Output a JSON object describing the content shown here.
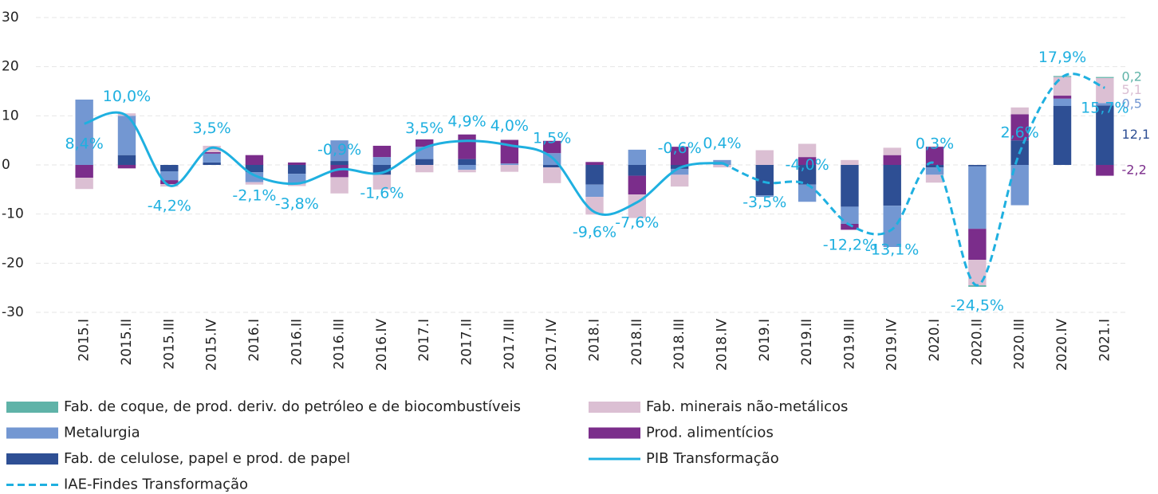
{
  "chart_data": {
    "type": "bar",
    "categories": [
      "2015.I",
      "2015.II",
      "2015.III",
      "2015.IV",
      "2016.I",
      "2016.II",
      "2016.III",
      "2016.IV",
      "2017.I",
      "2017.II",
      "2017.III",
      "2017.IV",
      "2018.I",
      "2018.II",
      "2018.III",
      "2018.IV",
      "2019.I",
      "2019.II",
      "2019.III",
      "2019.IV",
      "2020.I",
      "2020.II",
      "2020.III",
      "2020.IV",
      "2021.I"
    ],
    "ylim": [
      -30,
      30
    ],
    "yticks": [
      -30,
      -20,
      -10,
      0,
      10,
      20,
      30
    ],
    "grid": true,
    "series": [
      {
        "name": "Fab. de coque, de prod. deriv. do petróleo e de biocombustíveis",
        "color": "#5fb3a8",
        "values": [
          0,
          0,
          0,
          0,
          0,
          0,
          0,
          0,
          0,
          0,
          0,
          0,
          0,
          0,
          0,
          0,
          0,
          0,
          0,
          0,
          0,
          -0.3,
          0,
          0.2,
          0.2
        ],
        "value_labels": [
          null,
          null,
          null,
          null,
          null,
          null,
          null,
          null,
          null,
          null,
          null,
          null,
          null,
          null,
          null,
          null,
          null,
          null,
          null,
          null,
          null,
          null,
          null,
          null,
          "0,2"
        ]
      },
      {
        "name": "Fab. minerais não-metálicos",
        "color": "#dbbfd3",
        "values": [
          -2.3,
          0.5,
          -0.5,
          1.3,
          -0.5,
          -0.5,
          -3.3,
          -3,
          -1.5,
          -0.5,
          -1.4,
          -3.2,
          -3.6,
          -4.8,
          -2.4,
          -0.5,
          3,
          2.7,
          1,
          1.5,
          -1.6,
          -5.2,
          1.4,
          3.8,
          5.1
        ],
        "value_labels": [
          null,
          null,
          null,
          null,
          null,
          null,
          null,
          null,
          null,
          null,
          null,
          null,
          null,
          null,
          null,
          null,
          null,
          null,
          null,
          null,
          null,
          null,
          null,
          null,
          "5,1"
        ]
      },
      {
        "name": "Metalurgia",
        "color": "#7397d2",
        "values": [
          13.3,
          8,
          -1.8,
          1.8,
          -2,
          -2,
          4.2,
          1.6,
          2.5,
          -1,
          0.3,
          2.4,
          -2.5,
          3.1,
          -1.2,
          1,
          -0.3,
          -3.5,
          -3.5,
          -8.4,
          -1.5,
          -12.7,
          -8.2,
          1.5,
          0.5
        ],
        "value_labels": [
          null,
          null,
          null,
          null,
          null,
          null,
          null,
          null,
          null,
          null,
          null,
          null,
          null,
          null,
          null,
          null,
          null,
          null,
          null,
          null,
          null,
          null,
          null,
          null,
          "0,5"
        ]
      },
      {
        "name": "Prod. alimentícios",
        "color": "#7b2d8b",
        "values": [
          -2.6,
          -0.7,
          -0.8,
          0.3,
          2,
          0.5,
          -2.5,
          2.3,
          1.5,
          5,
          4.8,
          2.5,
          0.6,
          -3.8,
          3.7,
          0,
          0,
          1.6,
          -1.2,
          2,
          3.7,
          -6.3,
          5.3,
          0.6,
          -2.2
        ],
        "value_labels": [
          null,
          null,
          null,
          null,
          null,
          null,
          null,
          null,
          null,
          null,
          null,
          null,
          null,
          null,
          null,
          null,
          null,
          null,
          null,
          null,
          null,
          null,
          null,
          null,
          "-2,2"
        ]
      },
      {
        "name": "Fab. de celulose, papel e prod. de papel",
        "color": "#2e4f94",
        "values": [
          0,
          2,
          -1.3,
          0.5,
          -1.5,
          -1.8,
          0.8,
          -2,
          1.2,
          1.2,
          0,
          -0.5,
          -4,
          -2.2,
          -0.8,
          0,
          -6.2,
          -4,
          -8.5,
          -8.3,
          -0.5,
          -0.3,
          5,
          12,
          12.1
        ],
        "value_labels": [
          null,
          null,
          null,
          null,
          null,
          null,
          null,
          null,
          null,
          null,
          null,
          null,
          null,
          null,
          null,
          null,
          null,
          null,
          null,
          null,
          null,
          null,
          null,
          null,
          "12,1"
        ]
      }
    ],
    "lines": [
      {
        "name": "PIB Transformação",
        "color": "#1fb0e0",
        "dashed": false,
        "values": [
          8.4,
          10.0,
          -4.2,
          3.5,
          -2.1,
          -3.8,
          -0.9,
          -1.6,
          3.5,
          4.9,
          4.0,
          1.5,
          -9.6,
          -7.6,
          -0.6,
          0.4,
          null,
          null,
          null,
          null,
          null,
          null,
          null,
          null,
          null
        ],
        "value_labels": [
          "8,4%",
          "10,0%",
          "-4,2%",
          "3,5%",
          "-2,1%",
          "-3,8%",
          "-0,9%",
          "-1,6%",
          "3,5%",
          "4,9%",
          "4,0%",
          "1,5%",
          "-9,6%",
          "-7,6%",
          "-0,6%",
          "0,4%",
          null,
          null,
          null,
          null,
          null,
          null,
          null,
          null,
          null
        ]
      },
      {
        "name": "IAE-Findes Transformação",
        "color": "#1fb0e0",
        "dashed": true,
        "values": [
          null,
          null,
          null,
          null,
          null,
          null,
          null,
          null,
          null,
          null,
          null,
          null,
          null,
          null,
          null,
          0.4,
          -3.5,
          -4.0,
          -12.2,
          -13.1,
          0.3,
          -24.5,
          2.6,
          17.9,
          15.7
        ],
        "value_labels": [
          null,
          null,
          null,
          null,
          null,
          null,
          null,
          null,
          null,
          null,
          null,
          null,
          null,
          null,
          null,
          null,
          "-3,5%",
          "-4,0%",
          "-12,2%",
          "-13,1%",
          "0,3%",
          "-24,5%",
          "2,6%",
          "17,9%",
          "15,7%"
        ]
      }
    ]
  }
}
